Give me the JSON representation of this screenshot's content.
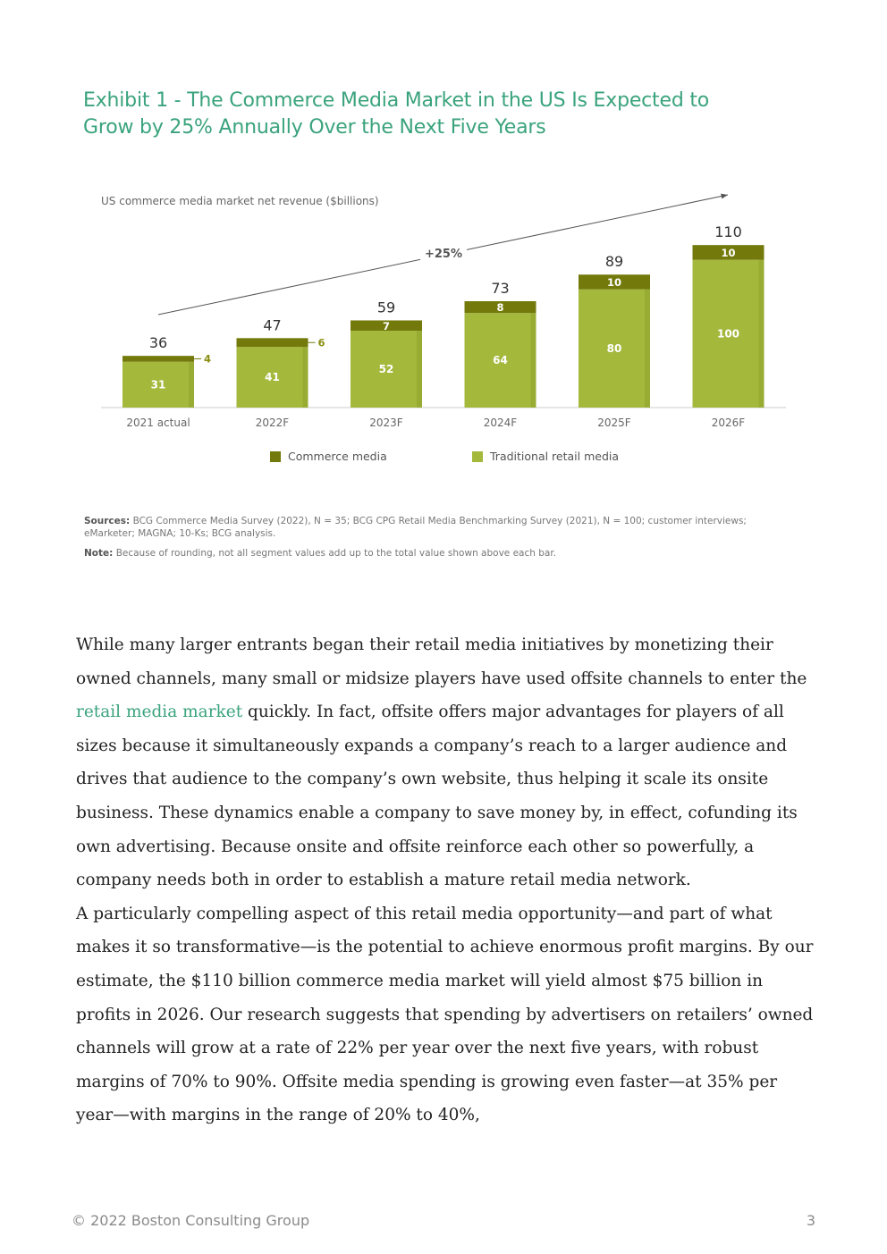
{
  "exhibit": {
    "title_line1": "Exhibit 1 - The Commerce Media Market in the US Is Expected to",
    "title_line2": "Grow by 25% Annually Over the Next Five Years"
  },
  "chart_data": {
    "type": "bar",
    "stacked": true,
    "ylabel": "US commerce media market net revenue ($billions)",
    "categories": [
      "2021 actual",
      "2022F",
      "2023F",
      "2024F",
      "2025F",
      "2026F"
    ],
    "series": [
      {
        "name": "Traditional retail media",
        "values": [
          31,
          41,
          52,
          64,
          80,
          100
        ],
        "color": "#a4b83c"
      },
      {
        "name": "Commerce media",
        "values": [
          4,
          6,
          7,
          8,
          10,
          10
        ],
        "color": "#737a0b"
      }
    ],
    "totals": [
      36,
      47,
      59,
      73,
      89,
      110
    ],
    "growth_label": "+25%",
    "legend_position": "bottom",
    "grid": false
  },
  "sources": {
    "label": "Sources:",
    "text": "BCG Commerce Media Survey (2022), N = 35; BCG CPG Retail Media Benchmarking Survey (2021), N = 100; customer interviews; eMarketer; MAGNA; 10-Ks; BCG analysis."
  },
  "note": {
    "label": "Note:",
    "text": "Because of rounding, not all segment values add up to the total value shown above each bar."
  },
  "body": {
    "p1_before_link": "While many larger entrants began their retail media initiatives by monetizing their owned channels, many small or midsize players have used offsite channels to enter the ",
    "p1_link": "retail media market",
    "p1_after_link": " quickly. In fact, offsite offers major advantages for players of all sizes because it simultaneously expands a company’s reach to a larger audience and drives that audience to the company’s own website, thus helping it scale its onsite business. These dynamics enable a company to save money by, in effect, cofunding its own advertising. Because onsite and offsite reinforce each other so powerfully, a company needs both in order to establish a mature retail media network.",
    "p2": "A particularly compelling aspect of this retail media opportunity—and part of what makes it so transformative—is the potential to achieve enormous profit margins. By our estimate, the $110 billion commerce media market will yield almost $75 billion in profits in 2026. Our research suggests that spending by advertisers on retailers’ owned channels will grow at a rate of 22% per year over the next five years, with robust margins of 70% to 90%. Offsite media spending is growing even faster—at 35% per year—with margins in the range of 20% to 40%,"
  },
  "footer": {
    "copyright": "© 2022 Boston Consulting Group",
    "page_number": "3"
  }
}
